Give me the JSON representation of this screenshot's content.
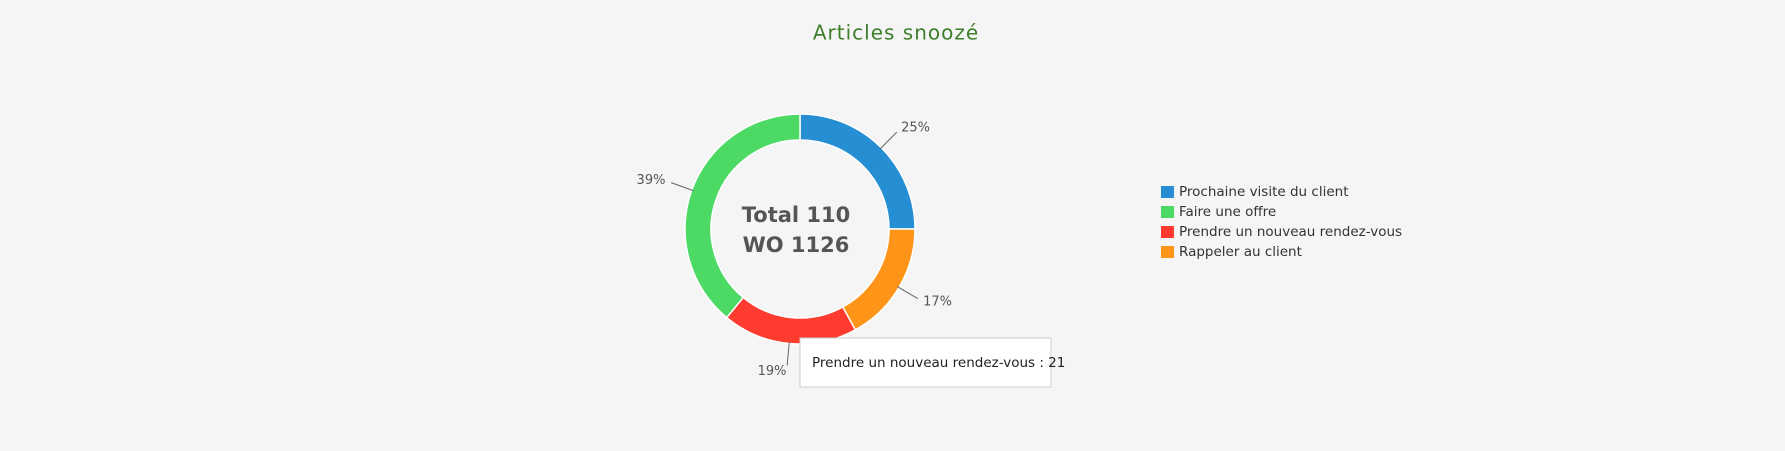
{
  "chart_data": {
    "type": "pie",
    "title": "Articles snoozé",
    "center_text": [
      "Total 110",
      "WO 1126"
    ],
    "categories": [
      "Prochaine visite du client",
      "Faire une offre",
      "Prendre un nouveau rendez-vous",
      "Rappeler au client"
    ],
    "values": [
      25,
      39,
      19,
      17
    ],
    "value_labels": [
      "25%",
      "39%",
      "19%",
      "17%"
    ],
    "colors": [
      "#268ed3",
      "#4cd964",
      "#ff3b30",
      "#ff9518"
    ],
    "legend": "right",
    "tooltip": "Prendre un nouveau rendez-vous : 21"
  }
}
